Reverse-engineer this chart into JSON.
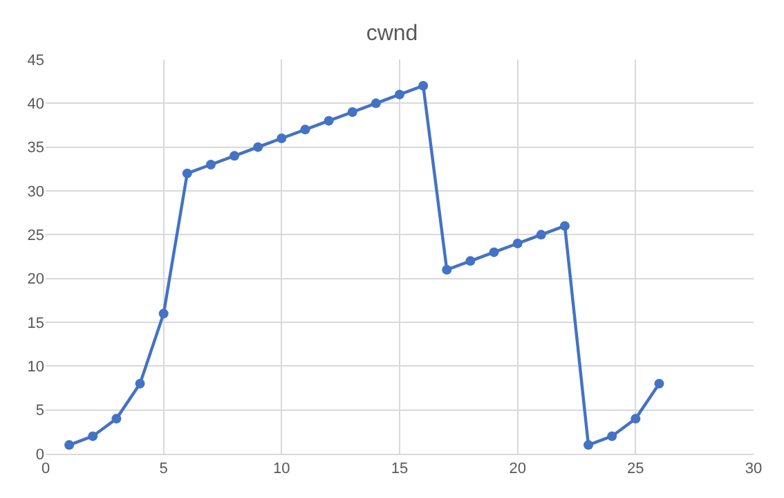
{
  "chart_data": {
    "type": "line",
    "title": "cwnd",
    "x": [
      1,
      2,
      3,
      4,
      5,
      6,
      7,
      8,
      9,
      10,
      11,
      12,
      13,
      14,
      15,
      16,
      17,
      18,
      19,
      20,
      21,
      22,
      23,
      24,
      25,
      26
    ],
    "series": [
      {
        "color": "#4472c4",
        "values": [
          1,
          2,
          4,
          8,
          16,
          32,
          33,
          34,
          35,
          36,
          37,
          38,
          39,
          40,
          41,
          42,
          21,
          22,
          23,
          24,
          25,
          26,
          1,
          2,
          4,
          8
        ]
      }
    ],
    "xlim": [
      0,
      30
    ],
    "xticks": [
      0,
      5,
      10,
      15,
      20,
      25,
      30
    ],
    "ylim": [
      0,
      45
    ],
    "yticks": [
      0,
      5,
      10,
      15,
      20,
      25,
      30,
      35,
      40,
      45
    ],
    "grid": true,
    "marker": "circle",
    "line_style": "solid",
    "legend": false
  }
}
